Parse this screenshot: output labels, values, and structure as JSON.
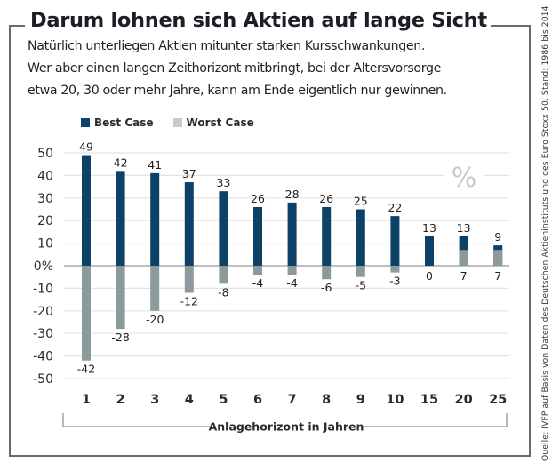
{
  "title": "Darum lohnen sich Aktien auf lange Sicht",
  "subtitle_lines": [
    "Natürlich unterliegen Aktien mitunter starken Kursschwankungen.",
    "Wer aber einen langen Zeithorizont mitbringt, bei der Altersvorsorge",
    "etwa 20, 30 oder mehr Jahre, kann am Ende eigentlich nur gewinnen."
  ],
  "source": "Quelle: IVFP auf Basis von Daten des Deutschen Aktieninstituts und des Euro Stoxx 50, Stand: 1986 bis 2014",
  "colors": {
    "best_case": "#0d4168",
    "worst_case": "#8c9a9c",
    "worst_case_legend": "#c5cccd",
    "grid": "#e3e3e3",
    "zero_line": "#9a9a9a",
    "frame": "#6a6a6a",
    "percent_mark": "#c8c8c8"
  },
  "chart_data": {
    "type": "bar",
    "title": "Darum lohnen sich Aktien auf lange Sicht",
    "xlabel": "Anlagehorizont in Jahren",
    "ylabel": "%",
    "unit_mark": "%",
    "categories": [
      "1",
      "2",
      "3",
      "4",
      "5",
      "6",
      "7",
      "8",
      "9",
      "10",
      "15",
      "20",
      "25"
    ],
    "series": [
      {
        "name": "Best Case",
        "values": [
          49,
          42,
          41,
          37,
          33,
          26,
          28,
          26,
          25,
          22,
          13,
          13,
          9
        ]
      },
      {
        "name": "Worst Case",
        "values": [
          -42,
          -28,
          -20,
          -12,
          -8,
          -4,
          -4,
          -6,
          -5,
          -3,
          0,
          7,
          7
        ]
      }
    ],
    "ylim": [
      -50,
      50
    ],
    "yticks": [
      50,
      40,
      30,
      20,
      10,
      0,
      -10,
      -20,
      -30,
      -40,
      -50
    ],
    "ytick_labels": [
      "50",
      "40",
      "30",
      "20",
      "10",
      "0%",
      "-10",
      "-20",
      "-30",
      "-40",
      "-50"
    ],
    "grid": true,
    "legend": "top-left",
    "overlay_bars": true
  }
}
